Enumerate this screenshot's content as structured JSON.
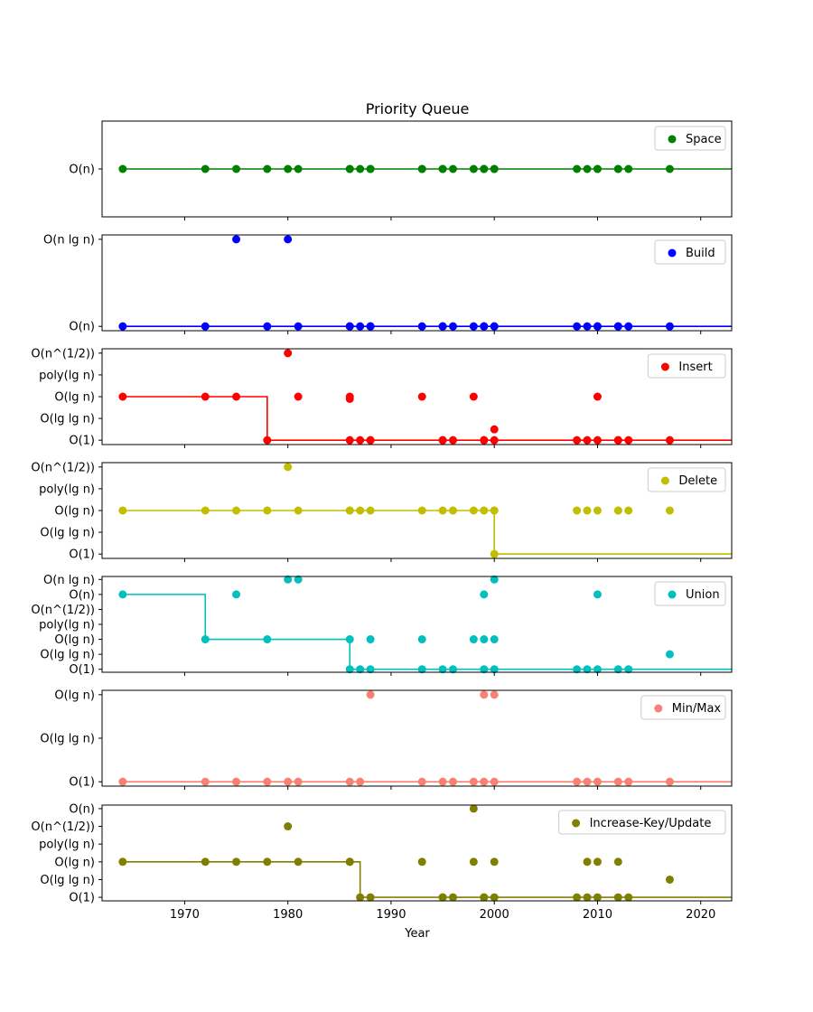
{
  "chart_data": {
    "type": "scatter",
    "title": "Priority Queue",
    "xlabel": "Year",
    "xlim": [
      1962,
      2023
    ],
    "x_ticks": [
      1970,
      1980,
      1990,
      2000,
      2010,
      2020
    ],
    "legend_position": "upper right",
    "grid": false,
    "panels": [
      {
        "name": "Space",
        "color": "#008000",
        "y_levels": [
          "O(n)"
        ],
        "ylim": [
          -1,
          1
        ],
        "points": [
          [
            1964,
            0
          ],
          [
            1972,
            0
          ],
          [
            1975,
            0
          ],
          [
            1978,
            0
          ],
          [
            1980,
            0
          ],
          [
            1981,
            0
          ],
          [
            1986,
            0
          ],
          [
            1986,
            0
          ],
          [
            1987,
            0
          ],
          [
            1988,
            0
          ],
          [
            1988,
            0
          ],
          [
            1993,
            0
          ],
          [
            1993,
            0
          ],
          [
            1995,
            0
          ],
          [
            1995,
            0
          ],
          [
            1996,
            0
          ],
          [
            1998,
            0
          ],
          [
            1999,
            0
          ],
          [
            1999,
            0
          ],
          [
            2000,
            0
          ],
          [
            2000,
            0
          ],
          [
            2008,
            0
          ],
          [
            2009,
            0
          ],
          [
            2010,
            0
          ],
          [
            2010,
            0
          ],
          [
            2012,
            0
          ],
          [
            2012,
            0
          ],
          [
            2013,
            0
          ],
          [
            2017,
            0
          ]
        ],
        "step": [
          [
            1964,
            0
          ],
          [
            2023,
            0
          ]
        ]
      },
      {
        "name": "Build",
        "color": "#0000ff",
        "y_levels": [
          "O(n)",
          "O(n lg n)"
        ],
        "ylim": [
          -0.05,
          1.05
        ],
        "points": [
          [
            1964,
            0
          ],
          [
            1972,
            0
          ],
          [
            1975,
            1
          ],
          [
            1978,
            0
          ],
          [
            1980,
            1
          ],
          [
            1981,
            0
          ],
          [
            1986,
            0
          ],
          [
            1986,
            0
          ],
          [
            1987,
            0
          ],
          [
            1988,
            0
          ],
          [
            1988,
            0
          ],
          [
            1993,
            0
          ],
          [
            1995,
            0
          ],
          [
            1995,
            0
          ],
          [
            1996,
            0
          ],
          [
            1998,
            0
          ],
          [
            1999,
            0
          ],
          [
            1999,
            0
          ],
          [
            2000,
            0
          ],
          [
            2000,
            0
          ],
          [
            2008,
            0
          ],
          [
            2009,
            0
          ],
          [
            2010,
            0
          ],
          [
            2010,
            0
          ],
          [
            2012,
            0
          ],
          [
            2012,
            0
          ],
          [
            2013,
            0
          ],
          [
            2017,
            0
          ]
        ],
        "step": [
          [
            1964,
            0
          ],
          [
            2023,
            0
          ]
        ]
      },
      {
        "name": "Insert",
        "color": "#ff0000",
        "y_levels": [
          "O(1)",
          "O(lg lg n)",
          "O(lg n)",
          "poly(lg n)",
          "O(n^(1/2))"
        ],
        "ylim": [
          -0.2,
          4.2
        ],
        "points": [
          [
            1964,
            2
          ],
          [
            1972,
            2
          ],
          [
            1975,
            2
          ],
          [
            1978,
            0
          ],
          [
            1980,
            4
          ],
          [
            1981,
            2
          ],
          [
            1986,
            2
          ],
          [
            1986,
            1.9
          ],
          [
            1986,
            0
          ],
          [
            1987,
            0
          ],
          [
            1988,
            0
          ],
          [
            1988,
            0
          ],
          [
            1993,
            2
          ],
          [
            1995,
            0
          ],
          [
            1995,
            0
          ],
          [
            1996,
            0
          ],
          [
            1998,
            2
          ],
          [
            1999,
            0
          ],
          [
            1999,
            0
          ],
          [
            2000,
            0.5
          ],
          [
            2000,
            0
          ],
          [
            2008,
            0
          ],
          [
            2009,
            0
          ],
          [
            2010,
            2
          ],
          [
            2010,
            0
          ],
          [
            2012,
            0
          ],
          [
            2012,
            0
          ],
          [
            2013,
            0
          ],
          [
            2017,
            0
          ]
        ],
        "step": [
          [
            1964,
            2
          ],
          [
            1978,
            2
          ],
          [
            1978,
            0
          ],
          [
            2023,
            0
          ]
        ]
      },
      {
        "name": "Delete",
        "color": "#bfbf00",
        "y_levels": [
          "O(1)",
          "O(lg lg n)",
          "O(lg n)",
          "poly(lg n)",
          "O(n^(1/2))"
        ],
        "ylim": [
          -0.2,
          4.2
        ],
        "points": [
          [
            1964,
            2
          ],
          [
            1972,
            2
          ],
          [
            1975,
            2
          ],
          [
            1978,
            2
          ],
          [
            1980,
            4
          ],
          [
            1981,
            2
          ],
          [
            1986,
            2
          ],
          [
            1986,
            2
          ],
          [
            1987,
            2
          ],
          [
            1988,
            2
          ],
          [
            1993,
            2
          ],
          [
            1995,
            2
          ],
          [
            1996,
            2
          ],
          [
            1998,
            2
          ],
          [
            1999,
            2
          ],
          [
            2000,
            2
          ],
          [
            2000,
            2
          ],
          [
            2000,
            0
          ],
          [
            2008,
            2
          ],
          [
            2009,
            2
          ],
          [
            2010,
            2
          ],
          [
            2012,
            2
          ],
          [
            2012,
            2
          ],
          [
            2013,
            2
          ],
          [
            2017,
            2
          ]
        ],
        "step": [
          [
            1964,
            2
          ],
          [
            2000,
            2
          ],
          [
            2000,
            0
          ],
          [
            2023,
            0
          ]
        ]
      },
      {
        "name": "Union",
        "color": "#00bfbf",
        "y_levels": [
          "O(1)",
          "O(lg lg n)",
          "O(lg n)",
          "poly(lg n)",
          "O(n^(1/2))",
          "O(n)",
          "O(n lg n)"
        ],
        "ylim": [
          -0.2,
          6.2
        ],
        "points": [
          [
            1964,
            5
          ],
          [
            1972,
            2
          ],
          [
            1975,
            5
          ],
          [
            1978,
            2
          ],
          [
            1980,
            6
          ],
          [
            1981,
            6
          ],
          [
            1986,
            2
          ],
          [
            1986,
            0
          ],
          [
            1987,
            0
          ],
          [
            1988,
            2
          ],
          [
            1988,
            0
          ],
          [
            1993,
            2
          ],
          [
            1993,
            0
          ],
          [
            1995,
            0
          ],
          [
            1996,
            0
          ],
          [
            1998,
            2
          ],
          [
            1999,
            5
          ],
          [
            1999,
            2
          ],
          [
            1999,
            0
          ],
          [
            2000,
            6
          ],
          [
            2000,
            2
          ],
          [
            2000,
            0
          ],
          [
            2008,
            0
          ],
          [
            2009,
            0
          ],
          [
            2010,
            5
          ],
          [
            2010,
            0
          ],
          [
            2012,
            0
          ],
          [
            2013,
            0
          ],
          [
            2017,
            1
          ]
        ],
        "step": [
          [
            1964,
            5
          ],
          [
            1972,
            5
          ],
          [
            1972,
            2
          ],
          [
            1986,
            2
          ],
          [
            1986,
            0
          ],
          [
            2023,
            0
          ]
        ]
      },
      {
        "name": "Min/Max",
        "color": "#fa8072",
        "y_levels": [
          "O(1)",
          "O(lg lg n)",
          "O(lg n)"
        ],
        "ylim": [
          -0.1,
          2.1
        ],
        "points": [
          [
            1964,
            0
          ],
          [
            1972,
            0
          ],
          [
            1975,
            0
          ],
          [
            1978,
            0
          ],
          [
            1980,
            0
          ],
          [
            1981,
            0
          ],
          [
            1986,
            0
          ],
          [
            1987,
            0
          ],
          [
            1988,
            2
          ],
          [
            1993,
            0
          ],
          [
            1995,
            0
          ],
          [
            1996,
            0
          ],
          [
            1998,
            0
          ],
          [
            1999,
            2
          ],
          [
            1999,
            0
          ],
          [
            2000,
            2
          ],
          [
            2000,
            0
          ],
          [
            2008,
            0
          ],
          [
            2009,
            0
          ],
          [
            2010,
            0
          ],
          [
            2012,
            0
          ],
          [
            2013,
            0
          ],
          [
            2017,
            0
          ]
        ],
        "step": [
          [
            1964,
            0
          ],
          [
            2023,
            0
          ]
        ]
      },
      {
        "name": "Increase-Key/Update",
        "color": "#808000",
        "y_levels": [
          "O(1)",
          "O(lg lg n)",
          "O(lg n)",
          "poly(lg n)",
          "O(n^(1/2))",
          "O(n)"
        ],
        "ylim": [
          -0.2,
          5.2
        ],
        "points": [
          [
            1964,
            2
          ],
          [
            1972,
            2
          ],
          [
            1975,
            2
          ],
          [
            1978,
            2
          ],
          [
            1980,
            4
          ],
          [
            1981,
            2
          ],
          [
            1986,
            2
          ],
          [
            1986,
            2
          ],
          [
            1987,
            0
          ],
          [
            1988,
            0
          ],
          [
            1993,
            2
          ],
          [
            1995,
            0
          ],
          [
            1995,
            0
          ],
          [
            1996,
            0
          ],
          [
            1998,
            5
          ],
          [
            1998,
            2
          ],
          [
            1999,
            0
          ],
          [
            1999,
            0
          ],
          [
            2000,
            2
          ],
          [
            2000,
            0
          ],
          [
            2008,
            0
          ],
          [
            2009,
            2
          ],
          [
            2009,
            0
          ],
          [
            2010,
            2
          ],
          [
            2010,
            0
          ],
          [
            2012,
            2
          ],
          [
            2012,
            0
          ],
          [
            2013,
            0
          ],
          [
            2017,
            1
          ]
        ],
        "step": [
          [
            1964,
            2
          ],
          [
            1987,
            2
          ],
          [
            1987,
            0
          ],
          [
            2023,
            0
          ]
        ]
      }
    ]
  }
}
